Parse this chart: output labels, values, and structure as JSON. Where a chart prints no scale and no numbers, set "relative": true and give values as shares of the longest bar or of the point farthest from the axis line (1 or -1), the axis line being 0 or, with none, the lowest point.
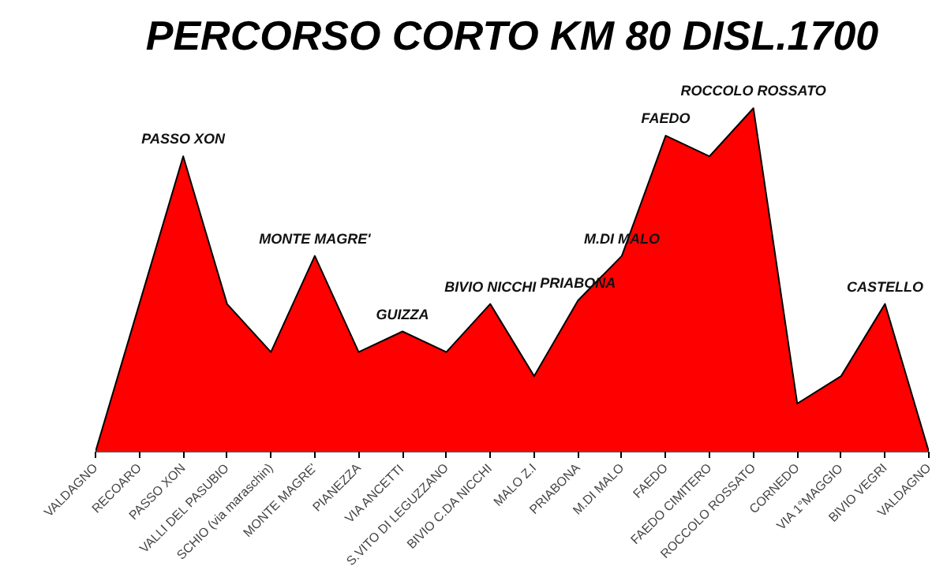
{
  "chart_data": {
    "type": "area",
    "title": "PERCORSO CORTO KM 80 DISL.1700",
    "relative": true,
    "color": "#ff0000",
    "grid": false,
    "categories": [
      "VALDAGNO",
      "RECOARO",
      "PASSO XON",
      "VALLI DEL PASUBIO",
      "SCHIO (via maraschin)",
      "MONTE MAGRE'",
      "PIANEZZA",
      "VIA ANCETTI",
      "S.VITO DI LEGUZZANO",
      "BIVIO C.DA NICCHI",
      "MALO Z.I",
      "PRIABONA",
      "M.DI MALO",
      "FAEDO",
      "FAEDO CIMITERO",
      "ROCCOLO ROSSATO",
      "CORNEDO",
      "VIA 1°MAGGIO",
      "BIVIO VEGRI",
      "VALDAGNO"
    ],
    "values": [
      0,
      0.43,
      0.86,
      0.43,
      0.29,
      0.57,
      0.29,
      0.35,
      0.29,
      0.43,
      0.22,
      0.44,
      0.57,
      0.92,
      0.86,
      1.0,
      0.14,
      0.22,
      0.43,
      0
    ],
    "annotations": [
      {
        "text": "PASSO XON",
        "x": "PASSO XON",
        "y": 0.86
      },
      {
        "text": "MONTE MAGRE'",
        "x": "MONTE MAGRE'",
        "y": 0.57
      },
      {
        "text": "GUIZZA",
        "x": "VIA ANCETTI",
        "y": 0.35
      },
      {
        "text": "BIVIO NICCHI",
        "x": "BIVIO C.DA NICCHI",
        "y": 0.43
      },
      {
        "text": "PRIABONA",
        "x": "PRIABONA",
        "y": 0.44
      },
      {
        "text": "M.DI MALO",
        "x": "M.DI MALO",
        "y": 0.57
      },
      {
        "text": "FAEDO",
        "x": "FAEDO",
        "y": 0.92
      },
      {
        "text": "ROCCOLO ROSSATO",
        "x": "ROCCOLO ROSSATO",
        "y": 1.0
      },
      {
        "text": "CASTELLO",
        "x": "BIVIO VEGRI",
        "y": 0.43
      }
    ]
  }
}
